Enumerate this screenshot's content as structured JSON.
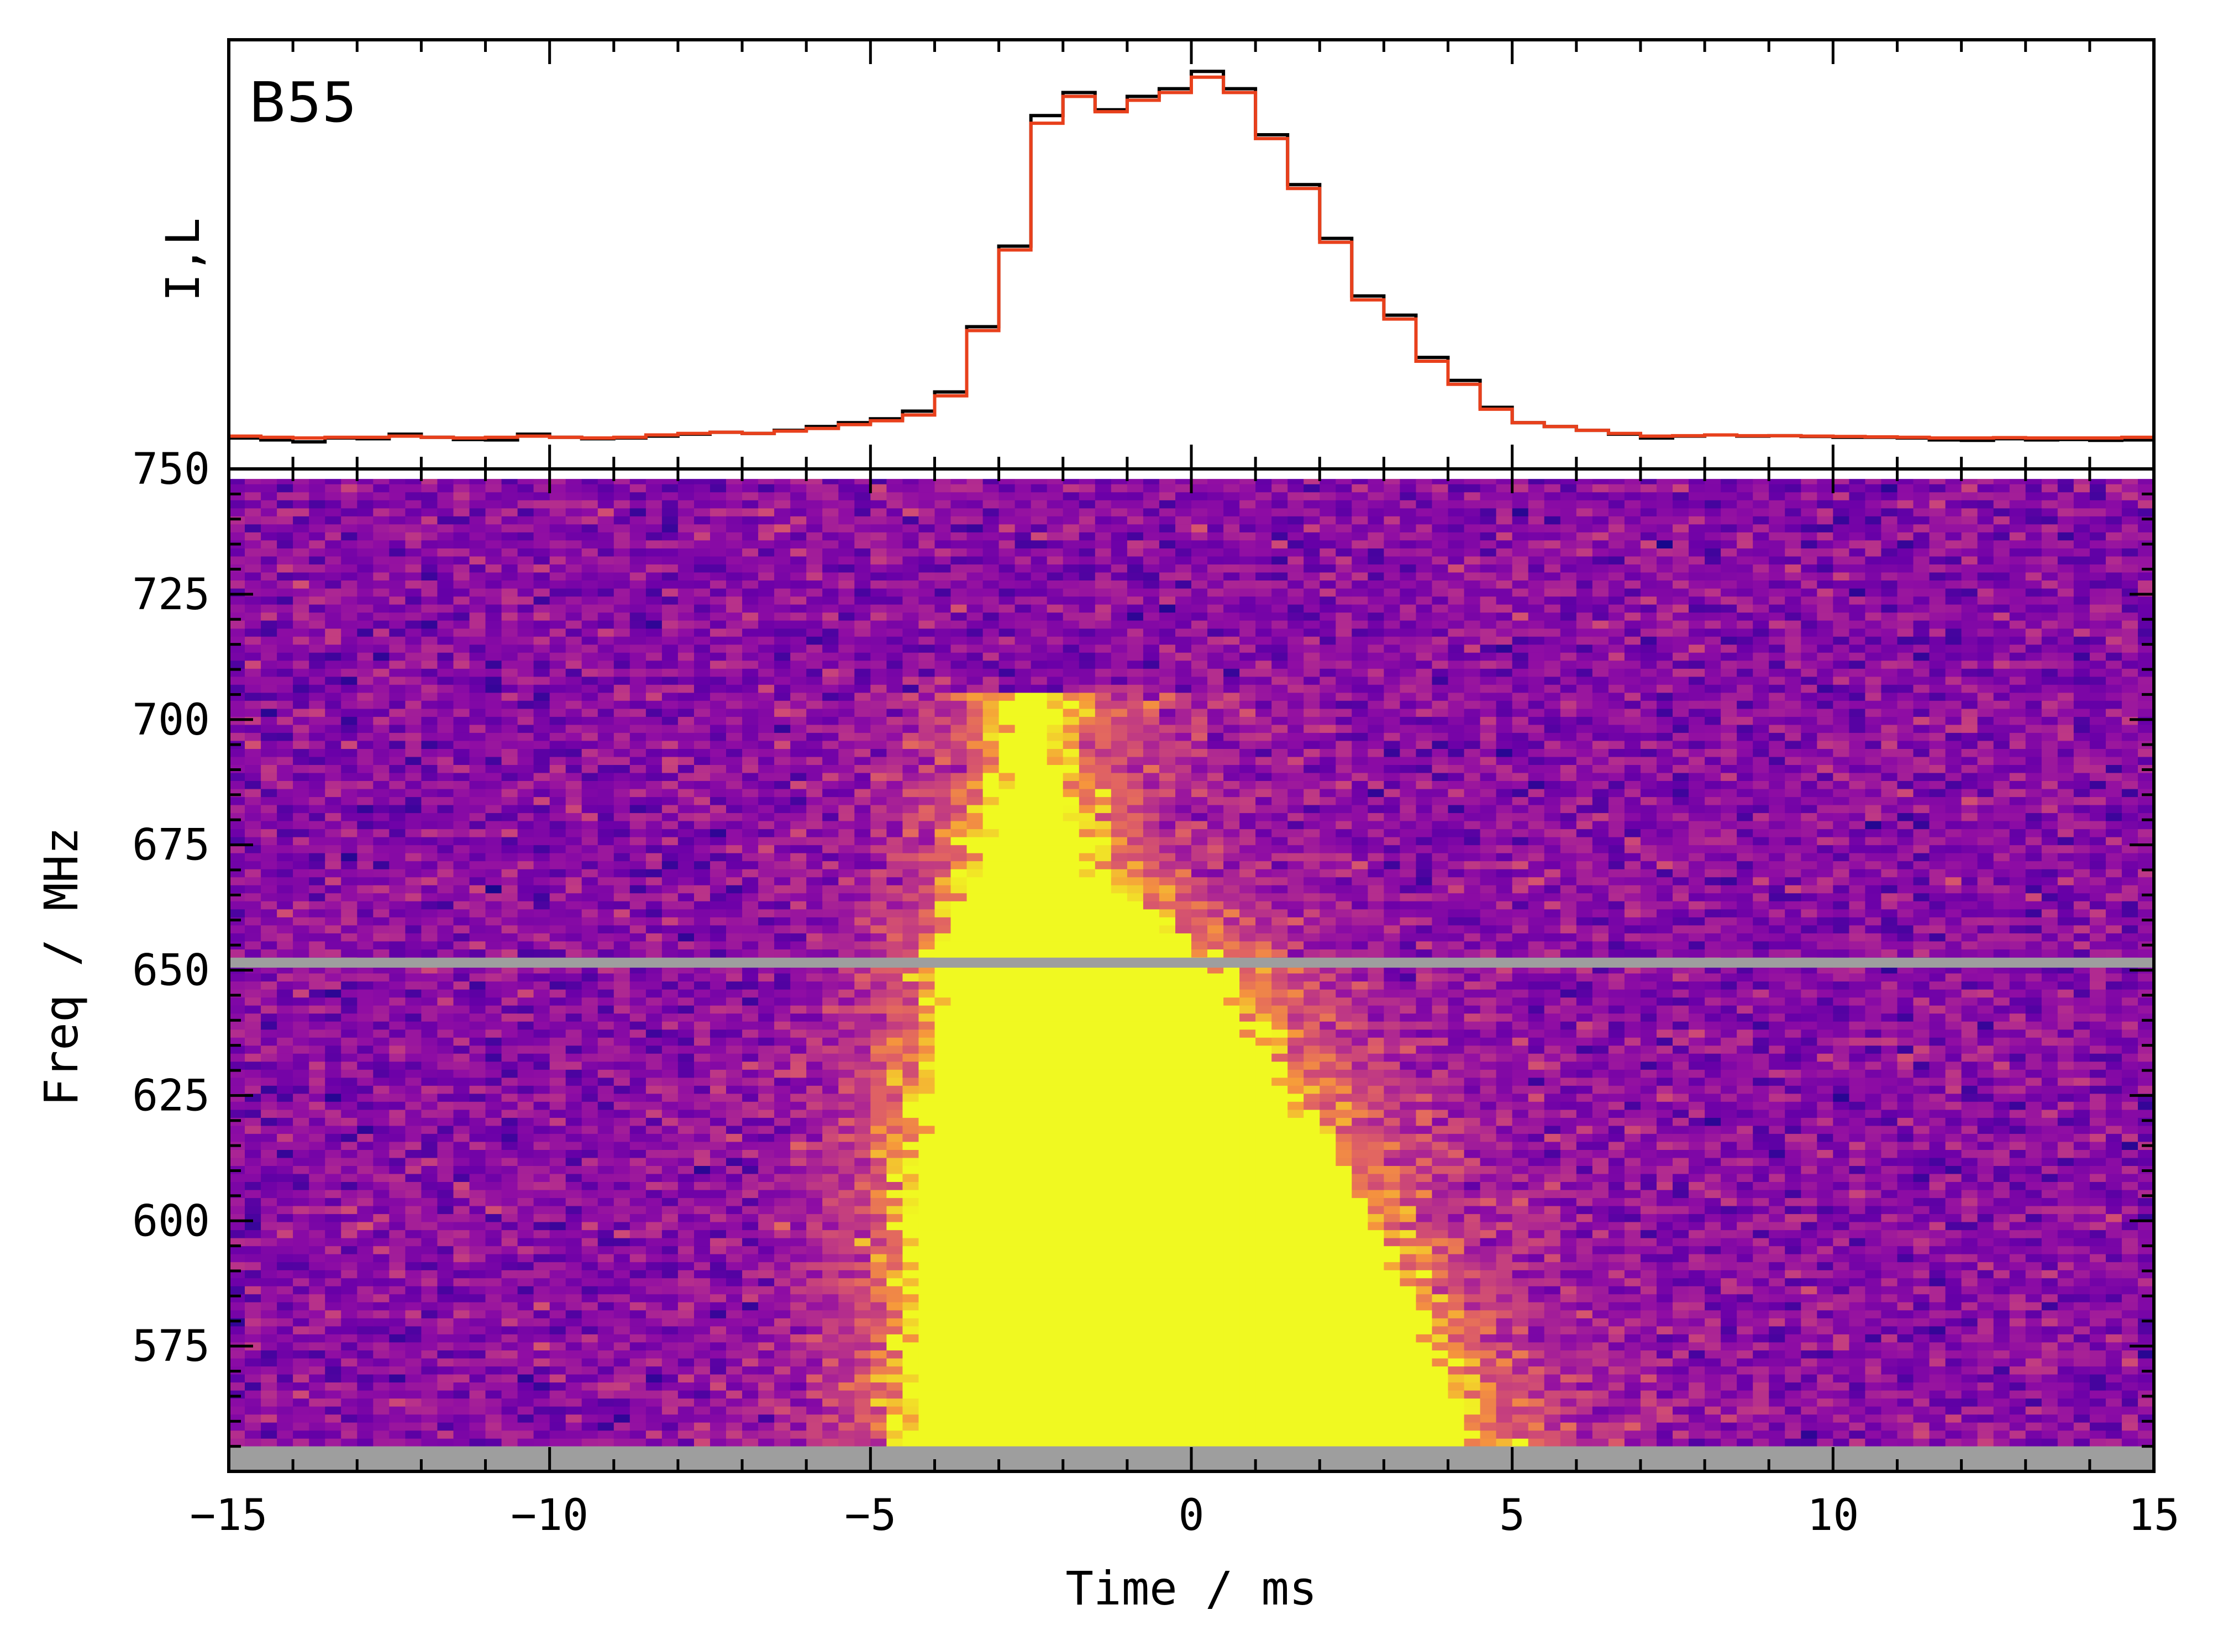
{
  "chart_data": [
    {
      "type": "line",
      "panel": "profile",
      "title": "B55",
      "ylabel": "I,L",
      "xlim": [
        -15,
        15
      ],
      "bin_width_ms": 0.5,
      "colors": {
        "I": "#000000",
        "L": "#e8401c"
      },
      "series": [
        {
          "name": "I",
          "color": "#000000",
          "x": [
            -15,
            -14.5,
            -14,
            -13.5,
            -13,
            -12.5,
            -12,
            -11.5,
            -11,
            -10.5,
            -10,
            -9.5,
            -9,
            -8.5,
            -8,
            -7.5,
            -7,
            -6.5,
            -6,
            -5.5,
            -5,
            -4.5,
            -4,
            -3.5,
            -3,
            -2.5,
            -2,
            -1.5,
            -1,
            -0.5,
            0,
            0.5,
            1,
            1.5,
            2,
            2.5,
            3,
            3.5,
            4,
            4.5,
            5,
            5.5,
            6,
            6.5,
            7,
            7.5,
            8,
            8.5,
            9,
            9.5,
            10,
            10.5,
            11,
            11.5,
            12,
            12.5,
            13,
            13.5,
            14,
            14.5
          ],
          "values": [
            0.01,
            0.005,
            0.0,
            0.01,
            0.008,
            0.02,
            0.012,
            0.006,
            0.005,
            0.02,
            0.012,
            0.008,
            0.01,
            0.015,
            0.02,
            0.025,
            0.022,
            0.03,
            0.04,
            0.05,
            0.06,
            0.08,
            0.13,
            0.3,
            0.51,
            0.85,
            0.91,
            0.865,
            0.9,
            0.92,
            0.965,
            0.92,
            0.8,
            0.67,
            0.53,
            0.38,
            0.33,
            0.22,
            0.16,
            0.09,
            0.05,
            0.04,
            0.03,
            0.02,
            0.01,
            0.015,
            0.018,
            0.015,
            0.016,
            0.014,
            0.012,
            0.012,
            0.01,
            0.005,
            0.004,
            0.008,
            0.005,
            0.006,
            0.004,
            0.005
          ]
        },
        {
          "name": "L",
          "color": "#e8401c",
          "x": [
            -15,
            -14.5,
            -14,
            -13.5,
            -13,
            -12.5,
            -12,
            -11.5,
            -11,
            -10.5,
            -10,
            -9.5,
            -9,
            -8.5,
            -8,
            -7.5,
            -7,
            -6.5,
            -6,
            -5.5,
            -5,
            -4.5,
            -4,
            -3.5,
            -3,
            -2.5,
            -2,
            -1.5,
            -1,
            -0.5,
            0,
            0.5,
            1,
            1.5,
            2,
            2.5,
            3,
            3.5,
            4,
            4.5,
            5,
            5.5,
            6,
            6.5,
            7,
            7.5,
            8,
            8.5,
            9,
            9.5,
            10,
            10.5,
            11,
            11.5,
            12,
            12.5,
            13,
            13.5,
            14,
            14.5
          ],
          "values": [
            0.015,
            0.012,
            0.01,
            0.012,
            0.012,
            0.015,
            0.012,
            0.01,
            0.012,
            0.015,
            0.012,
            0.01,
            0.012,
            0.018,
            0.022,
            0.025,
            0.022,
            0.028,
            0.035,
            0.045,
            0.055,
            0.07,
            0.12,
            0.29,
            0.5,
            0.83,
            0.9,
            0.86,
            0.89,
            0.91,
            0.95,
            0.91,
            0.79,
            0.66,
            0.52,
            0.37,
            0.32,
            0.21,
            0.15,
            0.085,
            0.05,
            0.04,
            0.03,
            0.022,
            0.015,
            0.016,
            0.018,
            0.016,
            0.016,
            0.015,
            0.014,
            0.013,
            0.012,
            0.01,
            0.01,
            0.011,
            0.01,
            0.01,
            0.01,
            0.012
          ]
        }
      ]
    },
    {
      "type": "heatmap",
      "panel": "dynamic-spectrum",
      "xlabel": "Time / ms",
      "ylabel": "Freq / MHz",
      "xlim": [
        -15,
        15
      ],
      "ylim": [
        550,
        750
      ],
      "xticks": [
        "−15",
        "−10",
        "−5",
        "0",
        "5",
        "10",
        "15"
      ],
      "xtick_values": [
        -15,
        -10,
        -5,
        0,
        5,
        10,
        15
      ],
      "yticks": [
        "575",
        "600",
        "625",
        "650",
        "675",
        "700",
        "725",
        "750"
      ],
      "ytick_values": [
        575,
        600,
        625,
        650,
        675,
        700,
        725,
        750
      ],
      "colormap": "plasma",
      "colors": {
        "masked_channel": "#9e9e9e",
        "saturated": "#f0f921",
        "background": "#6a00a8"
      },
      "freq_range_mhz": [
        555,
        748
      ],
      "time_bin_ms": 0.25,
      "freq_channel_mhz": 1.6,
      "masked_channels_mhz": [
        [
          650.5,
          652.5
        ],
        [
          550,
          555
        ]
      ],
      "burst": {
        "description_points": [
          {
            "freq": 555,
            "t_start": -4.3,
            "t_end": 4.3
          },
          {
            "freq": 600,
            "t_start": -4.3,
            "t_end": 2.6
          },
          {
            "freq": 650,
            "t_start": -3.8,
            "t_end": 0.2
          },
          {
            "freq": 670,
            "t_start": -3.3,
            "t_end": -1.7
          },
          {
            "freq": 690,
            "t_start": -2.8,
            "t_end": -2.3
          }
        ]
      }
    }
  ]
}
